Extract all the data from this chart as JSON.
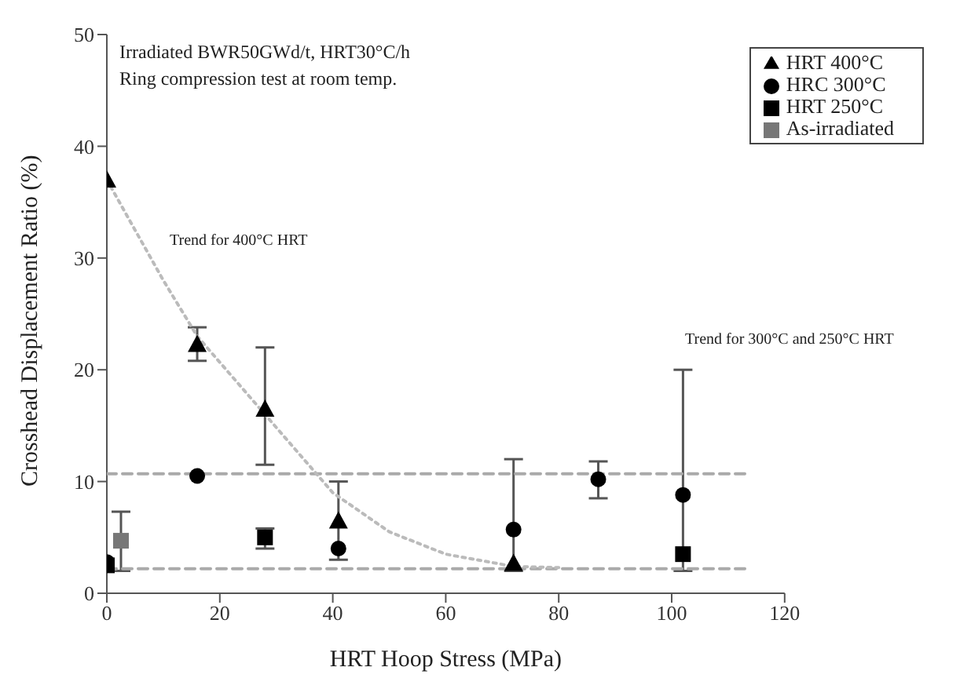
{
  "chart_data": {
    "type": "scatter",
    "xlabel": "HRT Hoop Stress (MPa)",
    "ylabel": "Crosshead Displacement Ratio (%)",
    "xlim": [
      0,
      120
    ],
    "xticks": [
      0,
      20,
      40,
      60,
      80,
      100,
      120
    ],
    "ylim": [
      0,
      50
    ],
    "yticks": [
      0,
      10,
      20,
      30,
      40,
      50
    ],
    "grid": false,
    "legend": "top right",
    "annotations": [
      "Irradiated BWR50GWd/t, HRT30°C/h",
      "Ring compression test at room temp.",
      "Trend for 400°C HRT",
      "Trend for 300°C and 250°C HRT"
    ],
    "series": [
      {
        "name": "HRT 400°C",
        "color": "#000000",
        "marker": "triangle",
        "x": [
          0,
          16,
          28,
          41,
          72
        ],
        "values": [
          37,
          22.3,
          16.5,
          6.5,
          2.7
        ],
        "errors": [
          null,
          [
            20.8,
            23.8
          ],
          [
            11.5,
            22
          ],
          [
            3,
            10
          ],
          null
        ]
      },
      {
        "name": "HRC 300°C",
        "color": "#000000",
        "marker": "circle",
        "x": [
          0,
          16,
          41,
          72,
          87,
          102
        ],
        "values": [
          2.8,
          10.5,
          4,
          5.7,
          10.2,
          8.8
        ],
        "errors": [
          null,
          null,
          null,
          [
            2,
            12
          ],
          [
            8.5,
            11.8
          ],
          [
            2,
            20
          ]
        ]
      },
      {
        "name": "HRT 250°C",
        "color": "#000000",
        "marker": "square",
        "x": [
          0,
          28,
          102
        ],
        "values": [
          2.5,
          5,
          3.5
        ],
        "errors": [
          null,
          [
            4,
            5.8
          ],
          null
        ]
      },
      {
        "name": "As-irradiated",
        "color": "#777777",
        "marker": "square",
        "x": [
          2.5
        ],
        "values": [
          4.7
        ],
        "errors": [
          [
            2,
            7.3
          ]
        ]
      },
      {
        "type": "line",
        "color": "#bbbbbb",
        "line_style": "dotted",
        "marker": "none",
        "x": [
          0,
          10,
          16,
          28,
          40,
          50,
          60,
          72,
          80
        ],
        "values": [
          37,
          28,
          23,
          16,
          9,
          5.5,
          3.5,
          2.4,
          2.3
        ]
      },
      {
        "type": "line",
        "color": "#aaaaaa",
        "line_style": "dashed",
        "marker": "none",
        "x": [
          0,
          113
        ],
        "values": [
          10.7,
          10.7
        ]
      },
      {
        "type": "line",
        "color": "#aaaaaa",
        "line_style": "dashed",
        "marker": "none",
        "x": [
          0,
          113
        ],
        "values": [
          2.2,
          2.2
        ]
      }
    ]
  }
}
